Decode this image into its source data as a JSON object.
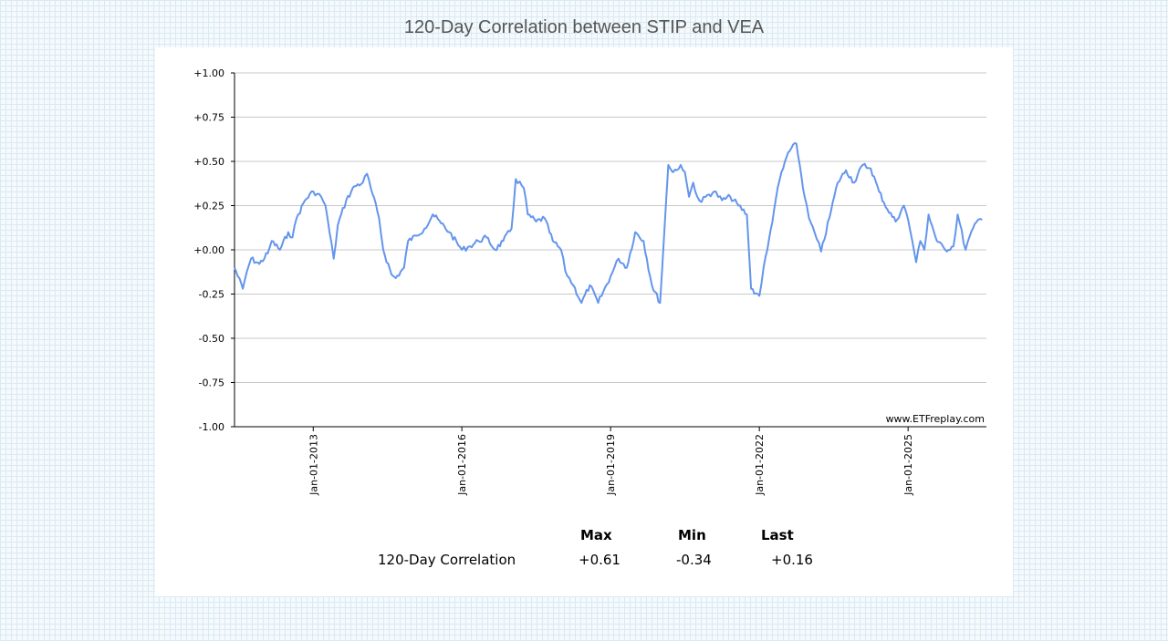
{
  "page": {
    "title": "120-Day Correlation between STIP and VEA",
    "watermark": "www.ETFreplay.com",
    "line_color": "#6495ED"
  },
  "stats": {
    "headers": {
      "max": "Max",
      "min": "Min",
      "last": "Last"
    },
    "row_label": "120-Day Correlation",
    "max": "+0.61",
    "min": "-0.34",
    "last": "+0.16"
  },
  "chart_data": {
    "type": "line",
    "title": "120-Day Correlation between STIP and VEA",
    "xlabel": "",
    "ylabel": "",
    "ylim": [
      -1,
      1
    ],
    "xlim": [
      "2011-06-01",
      "2026-08-01"
    ],
    "y_ticks": [
      "+1.00",
      "+0.75",
      "+0.50",
      "+0.25",
      "+0.00",
      "-0.25",
      "-0.50",
      "-0.75",
      "-1.00"
    ],
    "x_ticks": [
      {
        "label": "Jan-01-2013",
        "date": "2013-01-01"
      },
      {
        "label": "Jan-01-2016",
        "date": "2016-01-01"
      },
      {
        "label": "Jan-01-2019",
        "date": "2019-01-01"
      },
      {
        "label": "Jan-01-2022",
        "date": "2022-01-01"
      },
      {
        "label": "Jan-01-2025",
        "date": "2025-01-01"
      }
    ],
    "grid": true,
    "series": [
      {
        "x": [
          "2011-06-01",
          "2011-08-01",
          "2011-09-01",
          "2011-10-01",
          "2011-12-01",
          "2012-02-01",
          "2012-03-01",
          "2012-05-01",
          "2012-07-01",
          "2012-08-01",
          "2012-09-01",
          "2012-11-01",
          "2013-01-01",
          "2013-03-01",
          "2013-04-01",
          "2013-05-01",
          "2013-06-01",
          "2013-07-01",
          "2013-09-01",
          "2013-11-01",
          "2014-01-01",
          "2014-02-01",
          "2014-03-01",
          "2014-05-01",
          "2014-06-01",
          "2014-08-01",
          "2014-09-01",
          "2014-11-01",
          "2014-12-01",
          "2015-02-01",
          "2015-04-01",
          "2015-06-01",
          "2015-08-01",
          "2015-10-01",
          "2016-01-01",
          "2016-03-01",
          "2016-05-01",
          "2016-07-01",
          "2016-09-01",
          "2016-11-01",
          "2017-01-01",
          "2017-02-01",
          "2017-04-01",
          "2017-05-01",
          "2017-07-01",
          "2017-09-01",
          "2017-11-01",
          "2018-01-01",
          "2018-02-01",
          "2018-04-01",
          "2018-06-01",
          "2018-08-01",
          "2018-10-01",
          "2019-01-01",
          "2019-03-01",
          "2019-05-01",
          "2019-07-01",
          "2019-09-01",
          "2019-11-01",
          "2020-01-01",
          "2020-03-01",
          "2020-04-01",
          "2020-04-15",
          "2020-05-01",
          "2020-06-01",
          "2020-07-01",
          "2020-08-01",
          "2020-09-01",
          "2020-10-01",
          "2020-11-01",
          "2020-12-01",
          "2021-02-01",
          "2021-04-01",
          "2021-06-01",
          "2021-08-01",
          "2021-10-01",
          "2021-11-01",
          "2022-01-01",
          "2022-02-01",
          "2022-03-01",
          "2022-05-01",
          "2022-06-01",
          "2022-08-01",
          "2022-10-01",
          "2022-12-01",
          "2023-01-01",
          "2023-03-01",
          "2023-04-01",
          "2023-06-01",
          "2023-08-01",
          "2023-10-01",
          "2023-12-01",
          "2024-02-01",
          "2024-04-01",
          "2024-06-01",
          "2024-08-01",
          "2024-10-01",
          "2024-12-01",
          "2025-01-01",
          "2025-02-01",
          "2025-03-01",
          "2025-04-01",
          "2025-05-01",
          "2025-06-01",
          "2025-08-01",
          "2025-10-01",
          "2025-12-01",
          "2026-01-01",
          "2026-03-01",
          "2026-04-01",
          "2026-06-01",
          "2026-07-01"
        ],
        "y": [
          -0.1,
          -0.22,
          -0.12,
          -0.05,
          -0.08,
          -0.02,
          0.05,
          0.0,
          0.1,
          0.07,
          0.18,
          0.28,
          0.33,
          0.3,
          0.25,
          0.1,
          -0.05,
          0.14,
          0.28,
          0.36,
          0.38,
          0.43,
          0.35,
          0.18,
          0.0,
          -0.14,
          -0.16,
          -0.1,
          0.05,
          0.08,
          0.12,
          0.2,
          0.15,
          0.1,
          0.0,
          0.02,
          0.05,
          0.07,
          0.0,
          0.05,
          0.12,
          0.4,
          0.35,
          0.2,
          0.16,
          0.18,
          0.05,
          0.0,
          -0.12,
          -0.2,
          -0.3,
          -0.2,
          -0.3,
          -0.15,
          -0.05,
          -0.1,
          0.1,
          0.05,
          -0.2,
          -0.3,
          0.48,
          0.44,
          0.45,
          0.45,
          0.48,
          0.44,
          0.3,
          0.38,
          0.3,
          0.27,
          0.3,
          0.33,
          0.28,
          0.3,
          0.25,
          0.2,
          -0.22,
          -0.26,
          -0.1,
          0.0,
          0.28,
          0.4,
          0.55,
          0.6,
          0.3,
          0.18,
          0.06,
          -0.01,
          0.18,
          0.38,
          0.45,
          0.38,
          0.48,
          0.46,
          0.33,
          0.23,
          0.16,
          0.25,
          0.17,
          0.05,
          -0.07,
          0.05,
          0.0,
          0.2,
          0.05,
          0.0,
          0.02,
          0.2,
          0.0,
          0.08,
          0.17,
          0.17
        ]
      }
    ]
  }
}
